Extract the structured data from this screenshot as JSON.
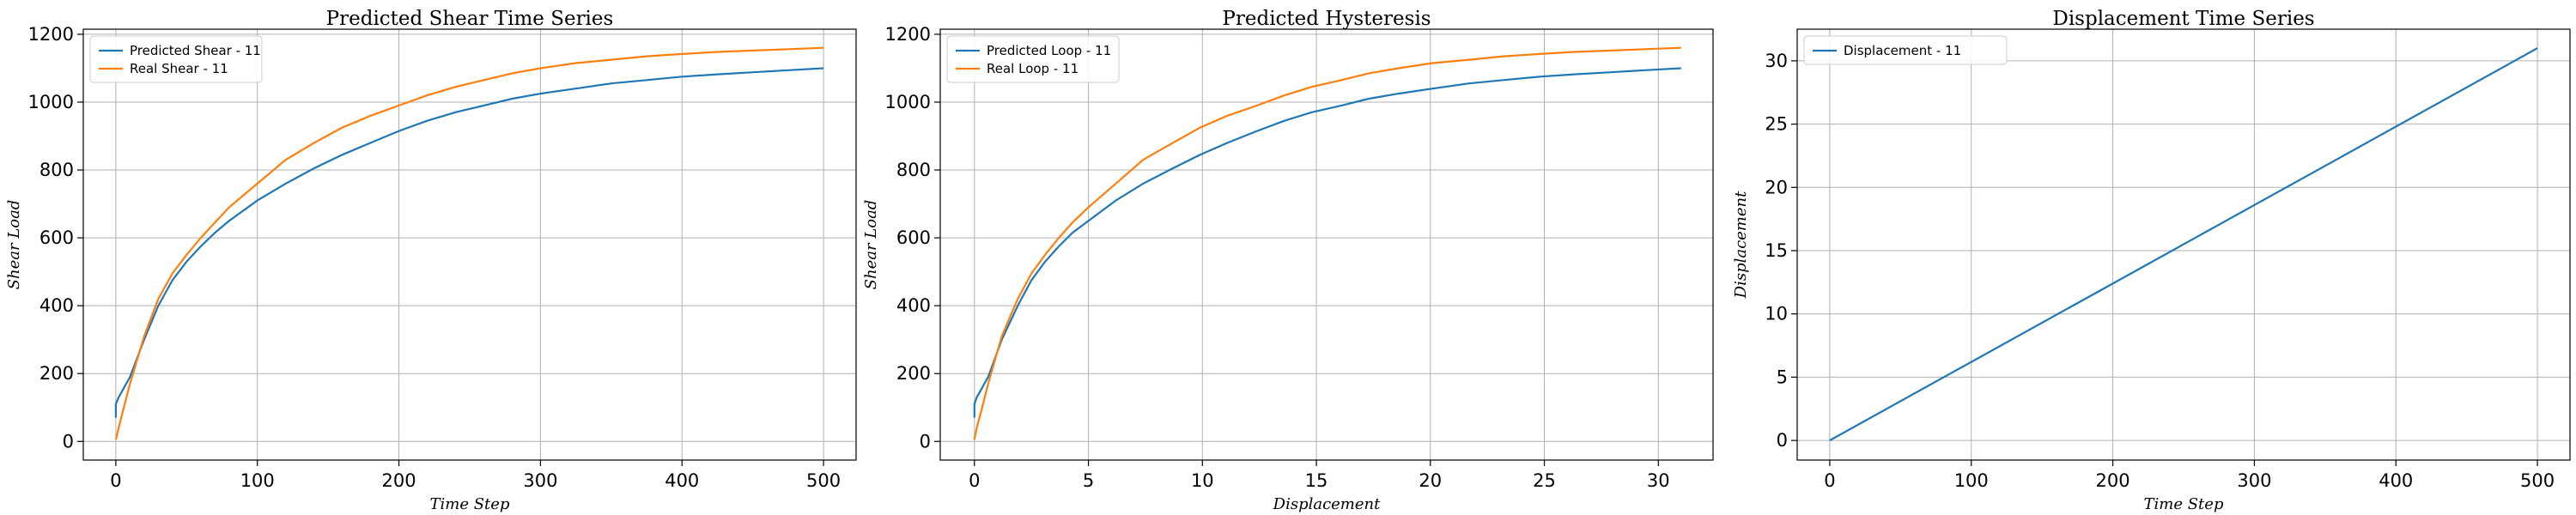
{
  "chart_data": [
    {
      "type": "line",
      "title": "Predicted Shear Time Series",
      "xlabel": "Time Step",
      "ylabel": "Shear Load",
      "xlim": [
        -23,
        523
      ],
      "ylim": [
        -55,
        1215
      ],
      "xticks": [
        0,
        100,
        200,
        300,
        400,
        500
      ],
      "yticks": [
        0,
        200,
        400,
        600,
        800,
        1000,
        1200
      ],
      "grid": true,
      "legend": "upper left",
      "series": [
        {
          "name": "Predicted Shear - 11",
          "color": "#1f77b4",
          "x": [
            0,
            0,
            2,
            10,
            20,
            30,
            40,
            50,
            60,
            70,
            80,
            100,
            120,
            140,
            160,
            180,
            200,
            220,
            240,
            260,
            280,
            300,
            325,
            350,
            375,
            400,
            425,
            450,
            475,
            500
          ],
          "y": [
            70,
            110,
            130,
            190,
            300,
            400,
            475,
            530,
            575,
            615,
            650,
            710,
            760,
            805,
            845,
            880,
            915,
            945,
            970,
            990,
            1010,
            1025,
            1040,
            1055,
            1065,
            1075,
            1082,
            1088,
            1094,
            1100
          ]
        },
        {
          "name": "Real Shear - 11",
          "color": "#ff7f0e",
          "x": [
            0,
            2,
            5,
            10,
            20,
            30,
            40,
            50,
            60,
            70,
            80,
            100,
            120,
            140,
            160,
            180,
            200,
            220,
            240,
            260,
            280,
            300,
            325,
            350,
            375,
            400,
            425,
            450,
            475,
            500
          ],
          "y": [
            5,
            40,
            90,
            170,
            310,
            420,
            495,
            550,
            600,
            645,
            690,
            760,
            830,
            880,
            925,
            960,
            990,
            1020,
            1045,
            1065,
            1085,
            1100,
            1115,
            1125,
            1135,
            1142,
            1148,
            1152,
            1156,
            1160
          ]
        }
      ]
    },
    {
      "type": "line",
      "title": "Predicted Hysteresis",
      "xlabel": "Displacement",
      "ylabel": "Shear Load",
      "xlim": [
        -1.5,
        32.4
      ],
      "ylim": [
        -55,
        1215
      ],
      "xticks": [
        0,
        5,
        10,
        15,
        20,
        25,
        30
      ],
      "yticks": [
        0,
        200,
        400,
        600,
        800,
        1000,
        1200
      ],
      "grid": true,
      "legend": "upper left",
      "series": [
        {
          "name": "Predicted Loop - 11",
          "color": "#1f77b4",
          "x": [
            0,
            0,
            0.1,
            0.6,
            1.2,
            1.9,
            2.5,
            3.1,
            3.7,
            4.3,
            5.0,
            6.2,
            7.4,
            8.7,
            9.9,
            11.1,
            12.4,
            13.6,
            14.8,
            16.1,
            17.3,
            18.6,
            20.1,
            21.7,
            23.2,
            24.8,
            26.3,
            27.9,
            29.4,
            31.0
          ],
          "y": [
            70,
            110,
            130,
            190,
            300,
            400,
            475,
            530,
            575,
            615,
            650,
            710,
            760,
            805,
            845,
            880,
            915,
            945,
            970,
            990,
            1010,
            1025,
            1040,
            1055,
            1065,
            1075,
            1082,
            1088,
            1094,
            1100
          ]
        },
        {
          "name": "Real Loop - 11",
          "color": "#ff7f0e",
          "x": [
            0,
            0.1,
            0.3,
            0.6,
            1.2,
            1.9,
            2.5,
            3.1,
            3.7,
            4.3,
            5.0,
            6.2,
            7.4,
            8.7,
            9.9,
            11.1,
            12.4,
            13.6,
            14.8,
            16.1,
            17.3,
            18.6,
            20.1,
            21.7,
            23.2,
            24.8,
            26.3,
            27.9,
            29.4,
            31.0
          ],
          "y": [
            5,
            40,
            90,
            170,
            310,
            420,
            495,
            550,
            600,
            645,
            690,
            760,
            830,
            880,
            925,
            960,
            990,
            1020,
            1045,
            1065,
            1085,
            1100,
            1115,
            1125,
            1135,
            1142,
            1148,
            1152,
            1156,
            1160
          ]
        }
      ]
    },
    {
      "type": "line",
      "title": "Displacement Time Series",
      "xlabel": "Time Step",
      "ylabel": "Displacement",
      "xlim": [
        -23,
        523
      ],
      "ylim": [
        -1.55,
        32.5
      ],
      "xticks": [
        0,
        100,
        200,
        300,
        400,
        500
      ],
      "yticks": [
        0,
        5,
        10,
        15,
        20,
        25,
        30
      ],
      "grid": true,
      "legend": "upper left",
      "series": [
        {
          "name": "Displacement - 11",
          "color": "#1f77b4",
          "x": [
            0,
            500
          ],
          "y": [
            0,
            31
          ]
        }
      ]
    }
  ]
}
